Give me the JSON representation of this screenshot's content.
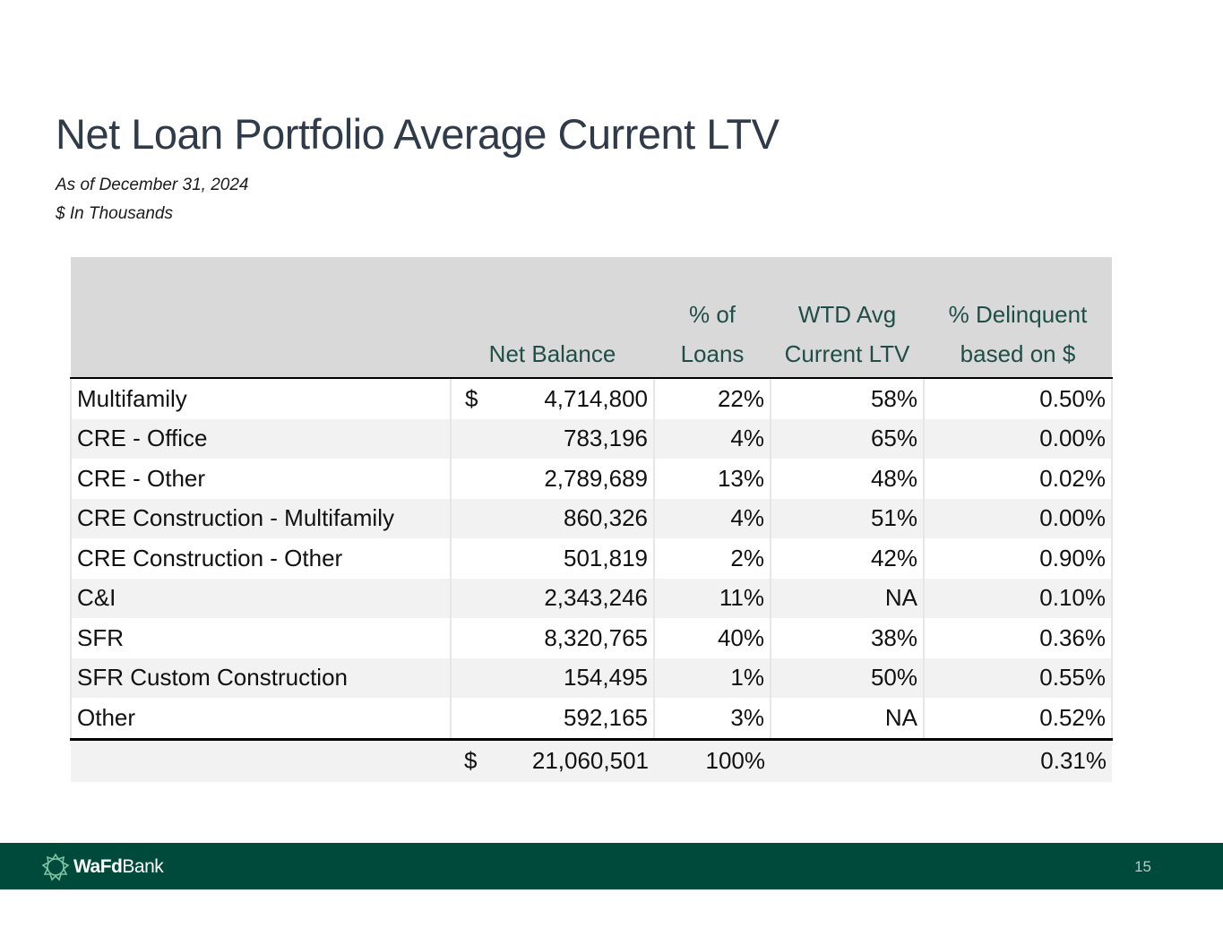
{
  "page": {
    "title": "Net Loan Portfolio Average Current LTV",
    "date_note": "As of December 31, 2024",
    "units_note": "$ In Thousands"
  },
  "table": {
    "headers": {
      "category": "",
      "balance": "Net Balance",
      "pct_loans_line1": "% of",
      "pct_loans_line2": "Loans",
      "ltv_line1": "WTD Avg",
      "ltv_line2": "Current LTV",
      "delinq_line1": "% Delinquent",
      "delinq_line2": "based on $"
    },
    "rows": [
      {
        "category": "Multifamily",
        "dollar": "$",
        "balance": "4,714,800",
        "pct_loans": "22%",
        "ltv": "58%",
        "delinquent": "0.50%"
      },
      {
        "category": "CRE - Office",
        "dollar": "",
        "balance": "783,196",
        "pct_loans": "4%",
        "ltv": "65%",
        "delinquent": "0.00%"
      },
      {
        "category": "CRE - Other",
        "dollar": "",
        "balance": "2,789,689",
        "pct_loans": "13%",
        "ltv": "48%",
        "delinquent": "0.02%"
      },
      {
        "category": "CRE Construction - Multifamily",
        "dollar": "",
        "balance": "860,326",
        "pct_loans": "4%",
        "ltv": "51%",
        "delinquent": "0.00%"
      },
      {
        "category": "CRE Construction - Other",
        "dollar": "",
        "balance": "501,819",
        "pct_loans": "2%",
        "ltv": "42%",
        "delinquent": "0.90%"
      },
      {
        "category": "C&I",
        "dollar": "",
        "balance": "2,343,246",
        "pct_loans": "11%",
        "ltv": "NA",
        "delinquent": "0.10%"
      },
      {
        "category": "SFR",
        "dollar": "",
        "balance": "8,320,765",
        "pct_loans": "40%",
        "ltv": "38%",
        "delinquent": "0.36%"
      },
      {
        "category": "SFR Custom Construction",
        "dollar": "",
        "balance": "154,495",
        "pct_loans": "1%",
        "ltv": "50%",
        "delinquent": "0.55%"
      },
      {
        "category": "Other",
        "dollar": "",
        "balance": "592,165",
        "pct_loans": "3%",
        "ltv": "NA",
        "delinquent": "0.52%"
      }
    ],
    "total": {
      "dollar": "$",
      "balance": "21,060,501",
      "pct_loans": "100%",
      "ltv": "",
      "delinquent": "0.31%"
    }
  },
  "footer": {
    "logo_bold": "WaFd",
    "logo_regular": "Bank",
    "page_number": "15",
    "bar_color": "#004a3c"
  }
}
